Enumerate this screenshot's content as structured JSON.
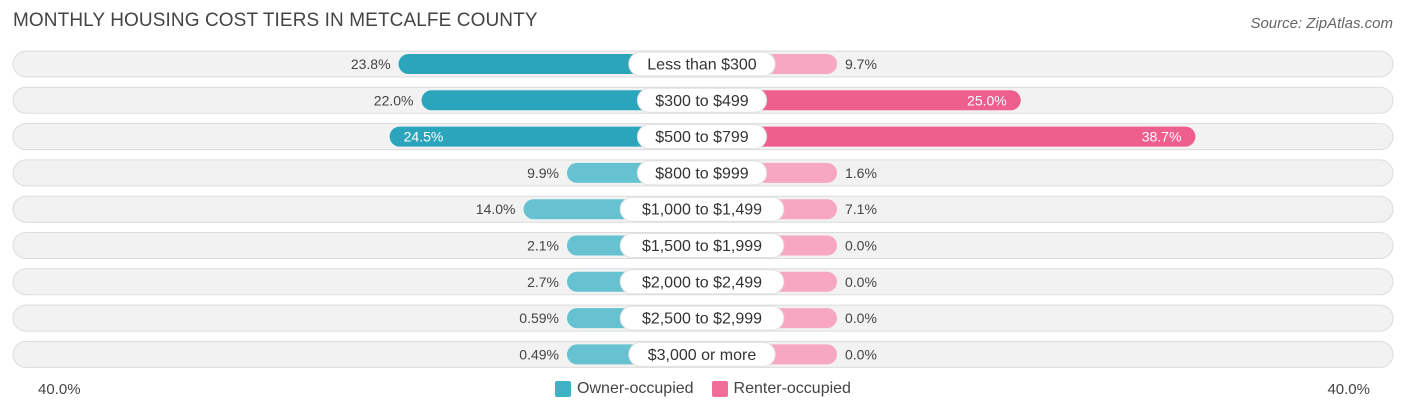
{
  "title": "MONTHLY HOUSING COST TIERS IN METCALFE COUNTY",
  "source": "Source: ZipAtlas.com",
  "axis": {
    "left_label": "40.0%",
    "right_label": "40.0%"
  },
  "legend": {
    "owner_label": "Owner-occupied",
    "renter_label": "Renter-occupied",
    "owner_color": "#3fb2c6",
    "renter_color": "#f06d98"
  },
  "chart_data": {
    "type": "bar",
    "orientation": "horizontal-diverging",
    "title": "MONTHLY HOUSING COST TIERS IN METCALFE COUNTY",
    "xlim": [
      -40,
      40
    ],
    "categories": [
      "Less than $300",
      "$300 to $499",
      "$500 to $799",
      "$800 to $999",
      "$1,000 to $1,499",
      "$1,500 to $1,999",
      "$2,000 to $2,499",
      "$2,500 to $2,999",
      "$3,000 or more"
    ],
    "series": [
      {
        "name": "Owner-occupied",
        "values": [
          23.8,
          22.0,
          24.5,
          9.9,
          14.0,
          2.1,
          2.7,
          0.59,
          0.49
        ],
        "labels": [
          "23.8%",
          "22.0%",
          "24.5%",
          "9.9%",
          "14.0%",
          "2.1%",
          "2.7%",
          "0.59%",
          "0.49%"
        ]
      },
      {
        "name": "Renter-occupied",
        "values": [
          9.7,
          25.0,
          38.7,
          1.6,
          7.1,
          0.0,
          0.0,
          0.0,
          0.0
        ],
        "labels": [
          "9.7%",
          "25.0%",
          "38.7%",
          "1.6%",
          "7.1%",
          "0.0%",
          "0.0%",
          "0.0%",
          "0.0%"
        ]
      }
    ]
  }
}
